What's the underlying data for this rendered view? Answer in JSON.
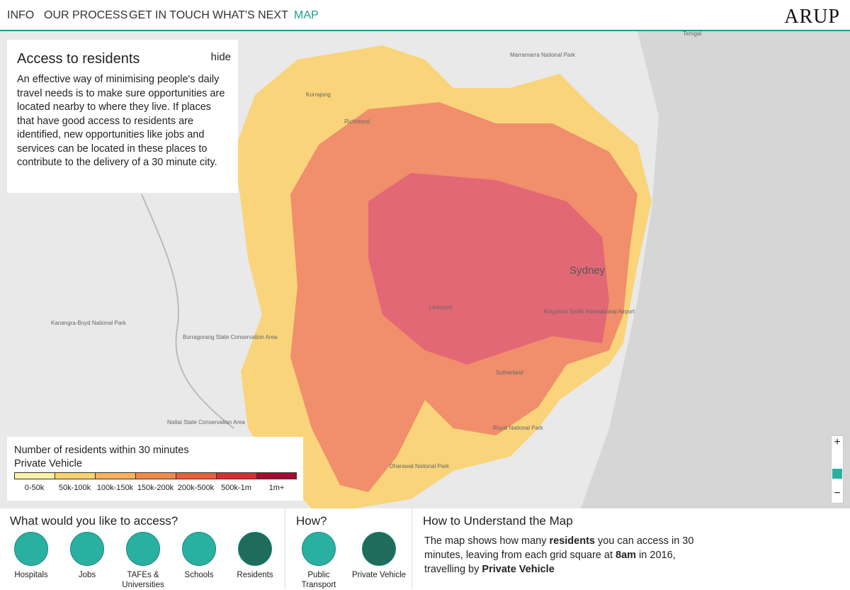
{
  "nav": {
    "items": [
      "INFO",
      "OUR PROCESS",
      "GET IN TOUCH",
      "WHAT'S NEXT",
      "MAP"
    ],
    "logo": "ARUP"
  },
  "info": {
    "title": "Access to residents",
    "hide": "hide",
    "body": "An effective way of minimising people's daily travel needs is to make sure opportunities are located nearby to where they live. If places that have good access to residents are identified, new opportunities like jobs and services can be located in these places to contribute to the delivery of a 30 minute city."
  },
  "map_labels": [
    "Marramarra National Park",
    "Kurrajong",
    "Richmond",
    "Kanangra-Boyd National Park",
    "Burragorang State Conservation Area",
    "Nattai State Conservation Area",
    "Dharawal National Park",
    "Sydney",
    "Liverpool",
    "Kingsford Smith International Airport",
    "Sutherland",
    "Royal National Park",
    "Terrigal"
  ],
  "legend": {
    "title": "Number of residents within 30 minutes",
    "mode": "Private Vehicle",
    "bins": [
      {
        "label": "0-50k",
        "color": "#fdf3a6"
      },
      {
        "label": "50k-100k",
        "color": "#fbd26e"
      },
      {
        "label": "100k-150k",
        "color": "#f8b25a"
      },
      {
        "label": "150k-200k",
        "color": "#f08a48"
      },
      {
        "label": "200k-500k",
        "color": "#e6603c"
      },
      {
        "label": "500k-1m",
        "color": "#d42f34"
      },
      {
        "label": "1m+",
        "color": "#a10d2f"
      }
    ]
  },
  "zoom": {
    "in": "+",
    "out": "−"
  },
  "access": {
    "heading": "What would you like to access?",
    "options": [
      "Hospitals",
      "Jobs",
      "TAFEs & Universities",
      "Schools",
      "Residents"
    ],
    "selected": 4
  },
  "how": {
    "heading": "How?",
    "options": [
      "Public Transport",
      "Private Vehicle"
    ],
    "selected": 1
  },
  "understand": {
    "heading": "How to Understand the Map",
    "text": [
      {
        "t": "The map shows how many "
      },
      {
        "t": "residents",
        "b": true
      },
      {
        "t": " you can access in 30 minutes, leaving from each grid square at "
      },
      {
        "t": "8am",
        "b": true
      },
      {
        "t": " in 2016, travelling by "
      },
      {
        "t": "Private Vehicle",
        "b": true
      }
    ]
  }
}
